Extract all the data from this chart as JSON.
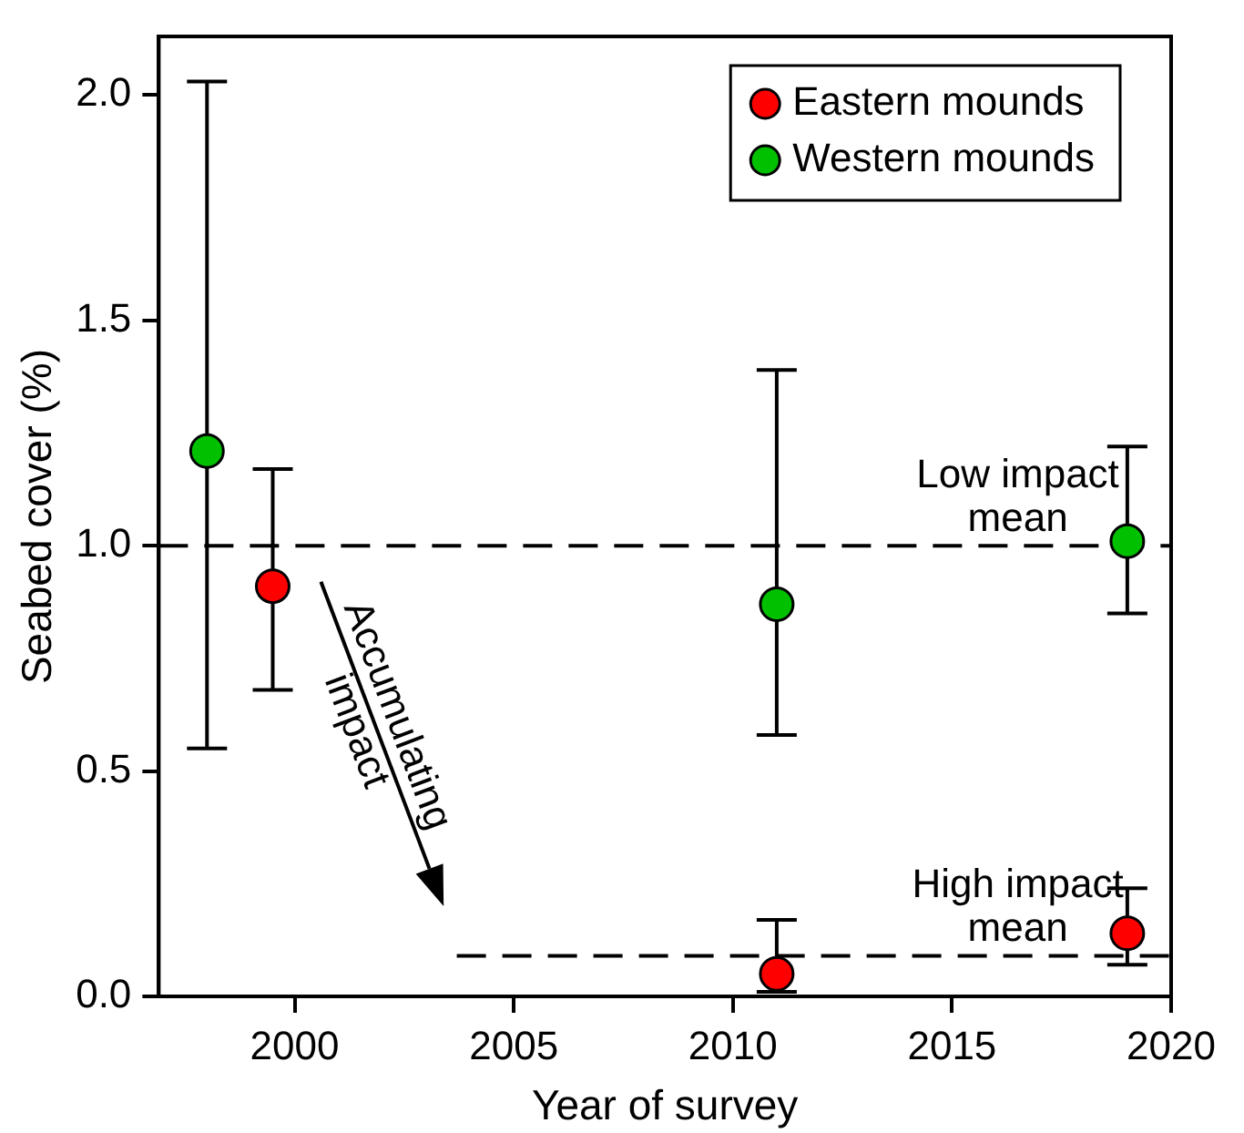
{
  "chart_data": {
    "type": "scatter",
    "xlabel": "Year of survey",
    "ylabel": "Seabed cover (%)",
    "xlim": [
      1996.9,
      2020
    ],
    "xticks": [
      2000,
      2005,
      2010,
      2015,
      2020
    ],
    "ylim": [
      0,
      2.13
    ],
    "yticks": [
      {
        "value": 0,
        "label": "0.0"
      },
      {
        "value": 0.5,
        "label": "0.5"
      },
      {
        "value": 1,
        "label": "1.0"
      },
      {
        "value": 1.5,
        "label": "1.5"
      },
      {
        "value": 2,
        "label": "2.0"
      }
    ],
    "grid": false,
    "legend": "top right",
    "marker": "circle",
    "series": [
      {
        "name": "Eastern mounds",
        "color": "#ff0000",
        "x": [
          1999.5,
          2011,
          2019
        ],
        "values": [
          0.91,
          0.05,
          0.14
        ],
        "errors": [
          [
            0.68,
            1.17
          ],
          [
            0.01,
            0.17
          ],
          [
            0.07,
            0.24
          ]
        ]
      },
      {
        "name": "Western mounds",
        "color": "#00c000",
        "x": [
          1998,
          2011,
          2019
        ],
        "values": [
          1.21,
          0.87,
          1.01
        ],
        "errors": [
          [
            0.55,
            2.03
          ],
          [
            0.58,
            1.39
          ],
          [
            0.85,
            1.22
          ]
        ]
      },
      {
        "type": "line",
        "color": "#000000",
        "line_style": "dashed",
        "marker": "none",
        "x": [
          2003.7,
          2020
        ],
        "values": [
          0.09,
          0.09
        ]
      }
    ],
    "ref_lines": [
      {
        "axis": "y",
        "value": 1,
        "label": "Low impact\nmean",
        "color": "#000000",
        "line_style": "dashed"
      }
    ],
    "annotations": [
      "High impact\nmean",
      "Accumulating\nimpact"
    ]
  }
}
